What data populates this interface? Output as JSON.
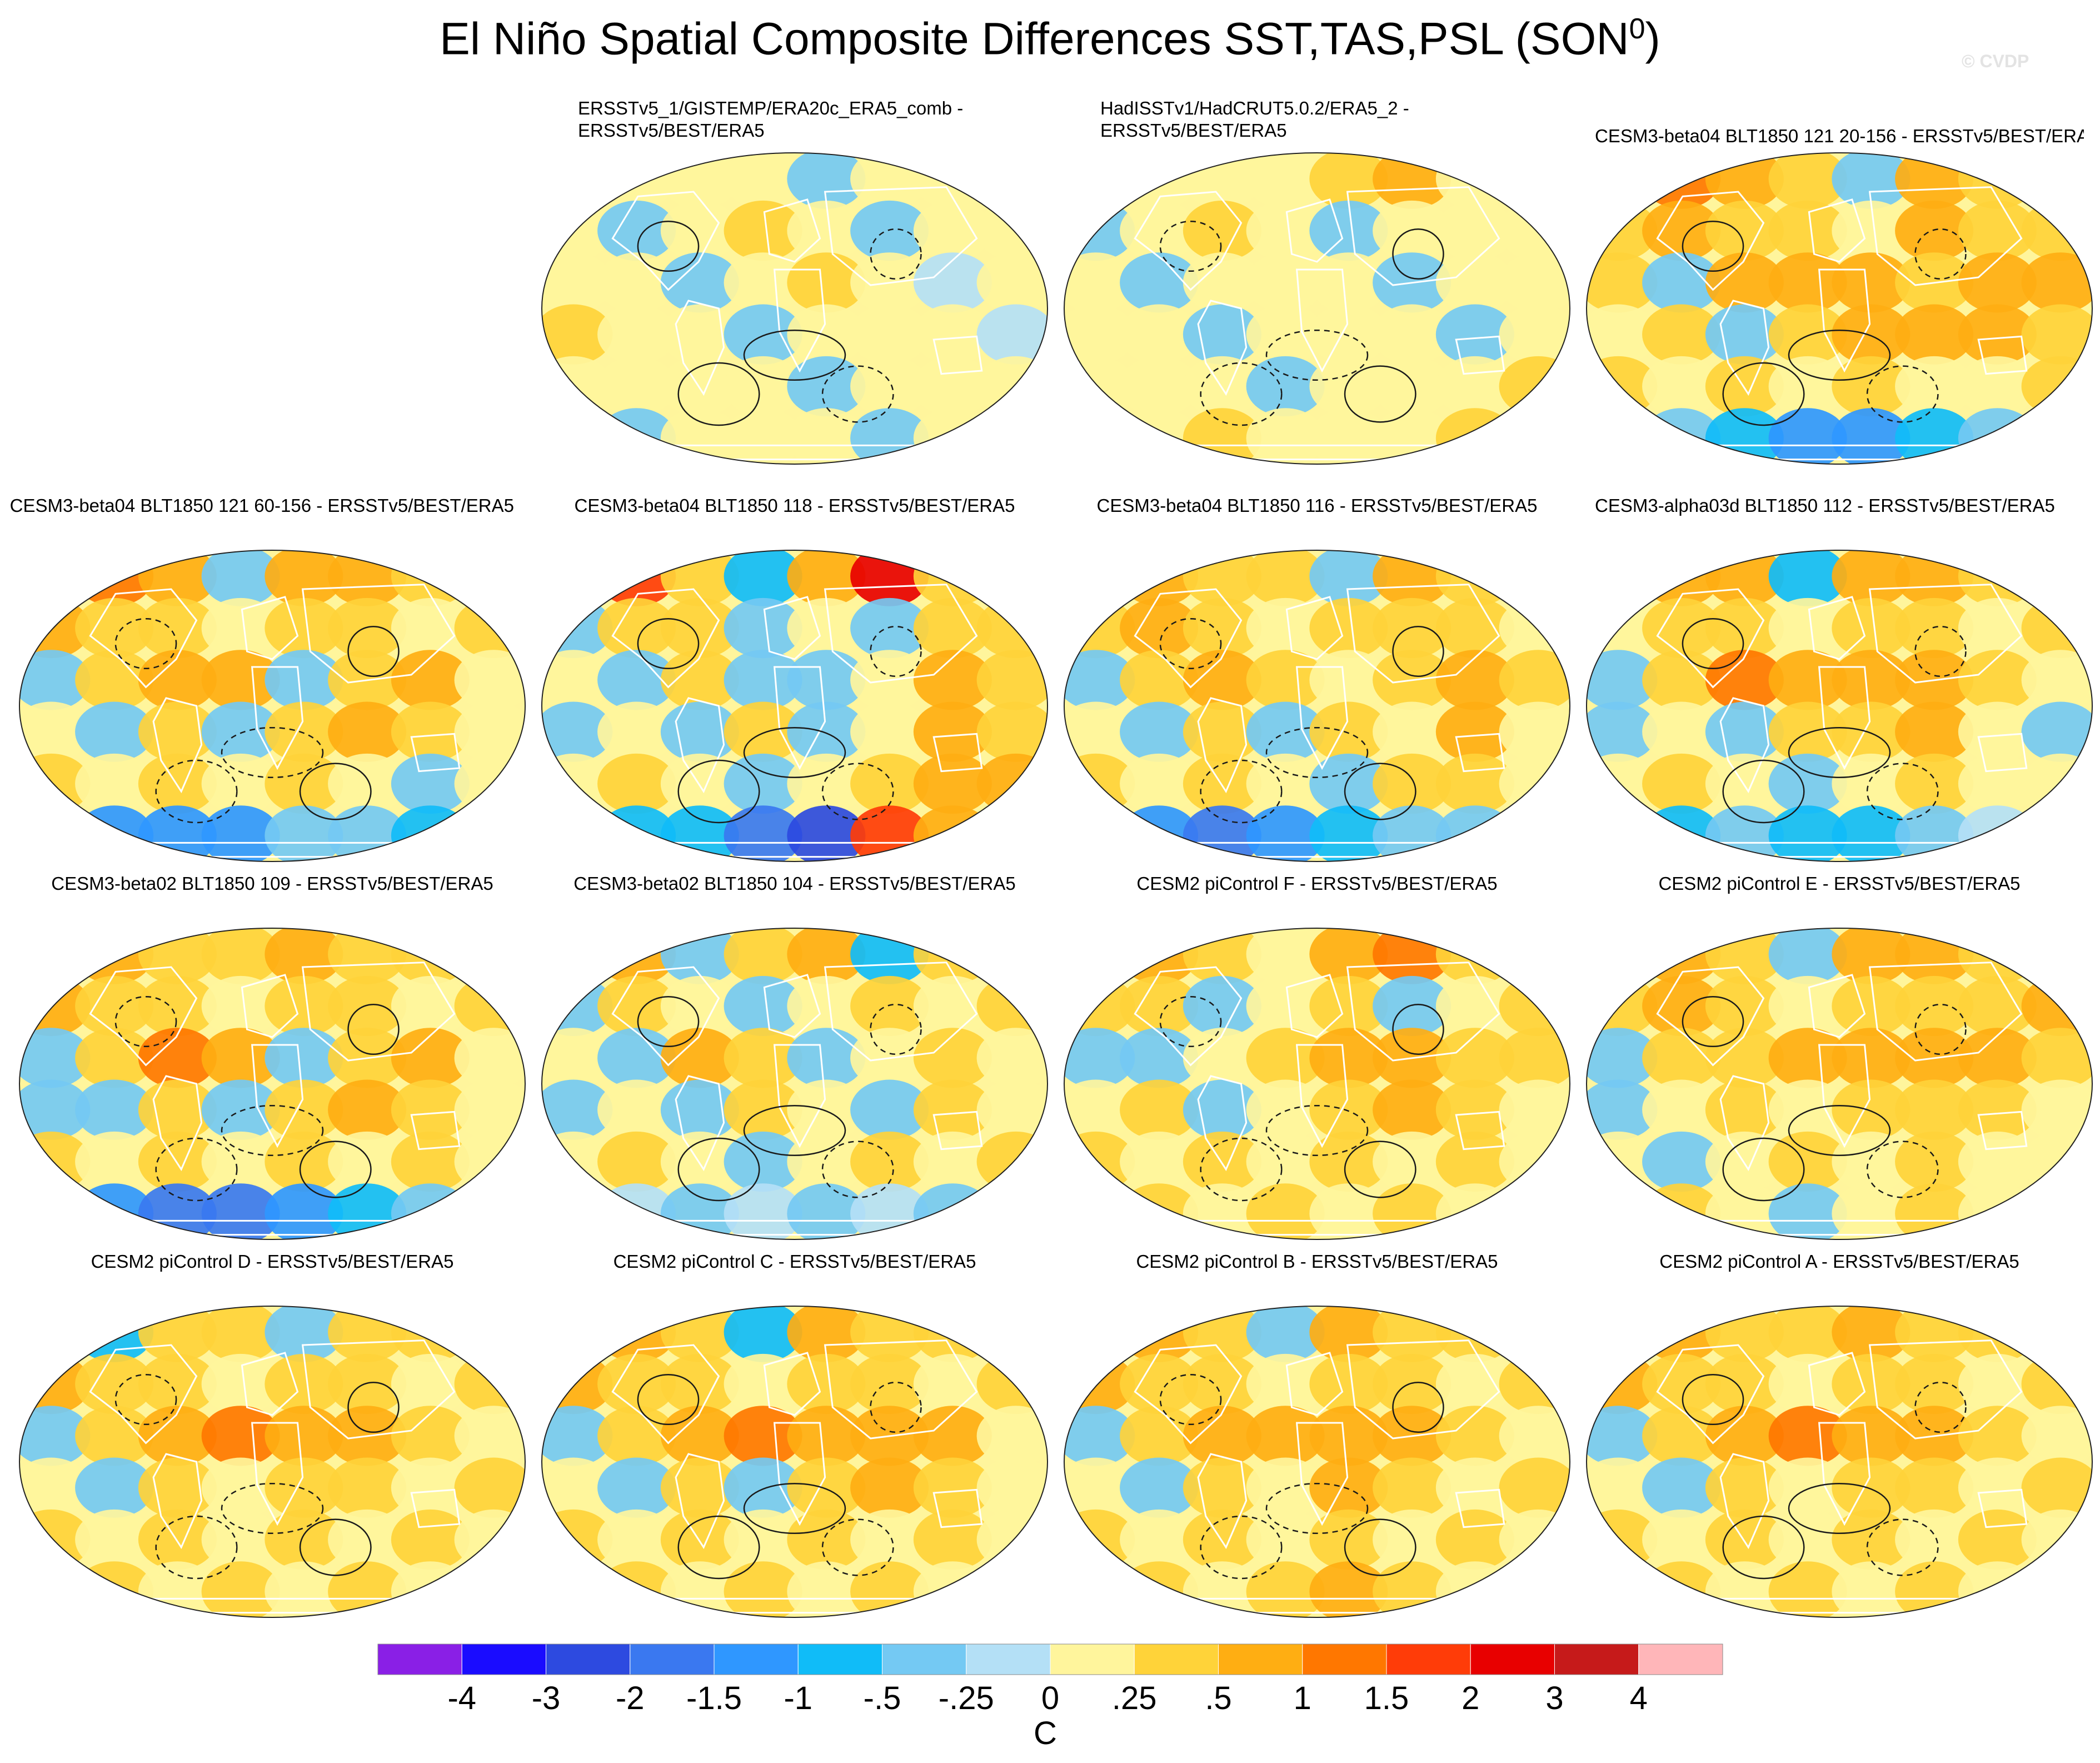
{
  "title_main": "El Niño Spatial Composite Differences SST,TAS,PSL (SON",
  "title_sup": "0",
  "title_end": ")",
  "watermark": "© CVDP",
  "colors": {
    "land_outline": "#ffffff",
    "contour": "#1a1a1a",
    "map_edge": "#222222"
  },
  "chart_data": {
    "type": "heatmap",
    "title": "El Niño Spatial Composite Differences SST,TAS,PSL (SON0)",
    "projection": "Robinson (global)",
    "colorbar": {
      "units": "C",
      "levels": [
        "-4",
        "-3",
        "-2",
        "-1.5",
        "-1",
        "-.5",
        "-.25",
        "0",
        ".25",
        ".5",
        "1",
        "1.5",
        "2",
        "3",
        "4"
      ],
      "colors": [
        "#8a1fe6",
        "#1a0cff",
        "#2d4ae0",
        "#3a78f0",
        "#2f97ff",
        "#10bcf8",
        "#74c9f3",
        "#b4e0f6",
        "#fff59c",
        "#ffd339",
        "#ffae12",
        "#ff7700",
        "#ff3c08",
        "#e80000",
        "#c61a1a",
        "#ffb6b9"
      ]
    },
    "panels": [
      {
        "title": "ERSSTv5_1/GISTEMP/ERA20c_ERA5_comb - ERSSTv5/BEST/ERA5",
        "row": 1,
        "col": 2,
        "anomalies": [
          [
            -1,
            0,
            0.2,
            0,
            -0.3,
            0.2,
            0,
            -0.4
          ],
          [
            0.2,
            -0.3,
            0,
            0.3,
            0,
            -0.3,
            0.2,
            0
          ],
          [
            0,
            0.2,
            -0.3,
            0,
            0.3,
            0,
            -0.2,
            0.2
          ],
          [
            0.3,
            0,
            0.2,
            -0.3,
            0,
            0.2,
            0,
            -0.2
          ],
          [
            0,
            0.2,
            0,
            0.2,
            -0.3,
            0,
            0.2,
            0
          ],
          [
            0,
            -0.3,
            0.2,
            0,
            0,
            -0.3,
            0,
            0.6
          ]
        ]
      },
      {
        "title": "HadISSTv1/HadCRUT5.0.2/ERA5_2 - ERSSTv5/BEST/ERA5",
        "row": 1,
        "col": 3,
        "anomalies": [
          [
            0.3,
            0,
            0.2,
            0,
            0.3,
            0.6,
            0,
            0.2
          ],
          [
            -0.3,
            0,
            0.3,
            0,
            -0.3,
            0,
            0.2,
            0
          ],
          [
            0,
            -0.3,
            0,
            0.2,
            0,
            -0.3,
            0,
            0.2
          ],
          [
            0.2,
            0,
            -0.3,
            0,
            0.2,
            0,
            -0.3,
            0
          ],
          [
            0,
            0.2,
            0,
            -0.3,
            0,
            0.2,
            0,
            0.3
          ],
          [
            0.2,
            0,
            0.3,
            0,
            0.2,
            0,
            0.3,
            0
          ]
        ]
      },
      {
        "title": "CESM3-beta04 BLT1850 121 20-156 - ERSSTv5/BEST/ERA5",
        "row": 1,
        "col": 4,
        "anomalies": [
          [
            0.8,
            1.2,
            0.6,
            0.3,
            -0.5,
            0.6,
            0.4,
            0.8
          ],
          [
            0.3,
            0.6,
            0.4,
            0.3,
            0.2,
            0.5,
            0.3,
            0.3
          ],
          [
            0.4,
            -0.3,
            0.6,
            0.7,
            0.6,
            0.4,
            0.8,
            0.6
          ],
          [
            0.2,
            0.3,
            -0.3,
            0.4,
            0.8,
            0.6,
            0.5,
            0.3
          ],
          [
            0.3,
            0.2,
            0.3,
            0.2,
            0.3,
            0.2,
            0.2,
            0.3
          ],
          [
            -0.3,
            -0.4,
            -0.6,
            -1.2,
            -1.5,
            -0.8,
            -0.3,
            -0.2
          ]
        ]
      },
      {
        "title": "CESM3-beta04 BLT1850 121 60-156 - ERSSTv5/BEST/ERA5",
        "row": 2,
        "col": 1,
        "anomalies": [
          [
            0.3,
            1.2,
            0.6,
            -0.3,
            0.5,
            0.6,
            0.3,
            -0.3
          ],
          [
            0.6,
            0.4,
            0.3,
            0.2,
            0.3,
            0.4,
            0.2,
            0.3
          ],
          [
            -0.3,
            0.3,
            0.8,
            0.6,
            -0.3,
            0.3,
            0.9,
            0.2
          ],
          [
            0.2,
            -0.3,
            0.3,
            -0.3,
            0.3,
            0.6,
            0.3,
            0.2
          ],
          [
            0.3,
            0.2,
            0.3,
            0.2,
            0.3,
            0.2,
            -0.3,
            0.2
          ],
          [
            -0.6,
            -1.2,
            -1.5,
            -1.2,
            -0.5,
            -0.3,
            -0.6,
            -0.3
          ]
        ]
      },
      {
        "title": "CESM3-beta04 BLT1850 118 - ERSSTv5/BEST/ERA5",
        "row": 2,
        "col": 2,
        "anomalies": [
          [
            0.5,
            1.5,
            0.3,
            -0.6,
            0.5,
            2,
            0.3,
            -0.5
          ],
          [
            -0.3,
            0.4,
            0.3,
            -0.3,
            0.2,
            -0.3,
            0.3,
            0.4
          ],
          [
            0.2,
            -0.3,
            0.3,
            -0.5,
            -0.3,
            0.2,
            0.6,
            0.3
          ],
          [
            -0.3,
            0.2,
            -0.3,
            0.3,
            -0.3,
            0.2,
            0.8,
            0.3
          ],
          [
            0.2,
            0.3,
            0.2,
            -0.3,
            0.2,
            0.3,
            0.6,
            0.5
          ],
          [
            -0.3,
            -0.6,
            -1,
            -2,
            -2.5,
            1.5,
            0.6,
            0.3
          ]
        ]
      },
      {
        "title": "CESM3-beta04 BLT1850 116 - ERSSTv5/BEST/ERA5",
        "row": 2,
        "col": 3,
        "anomalies": [
          [
            -0.6,
            0.6,
            0.3,
            0.4,
            -0.3,
            0.6,
            0.3,
            0.5
          ],
          [
            0.4,
            0.6,
            0.3,
            0.2,
            0.3,
            0.4,
            0.3,
            0.2
          ],
          [
            -0.3,
            0.3,
            0.6,
            0.3,
            0.2,
            0.3,
            0.8,
            0.3
          ],
          [
            0.2,
            -0.3,
            0.3,
            -0.3,
            0.3,
            0.2,
            0.9,
            0.2
          ],
          [
            0.3,
            0.2,
            0.3,
            0.2,
            -0.3,
            0.3,
            0.4,
            0.2
          ],
          [
            -0.6,
            -1.2,
            -2,
            -1.5,
            -0.8,
            -0.3,
            -0.3,
            -0.2
          ]
        ]
      },
      {
        "title": "CESM3-alpha03d BLT1850 112 - ERSSTv5/BEST/ERA5",
        "row": 2,
        "col": 4,
        "anomalies": [
          [
            0.3,
            0.6,
            0.8,
            -0.6,
            0.5,
            0.6,
            0.3,
            0.4
          ],
          [
            0.2,
            0.4,
            0.3,
            0.2,
            0.3,
            0.4,
            0.2,
            0.3
          ],
          [
            -0.3,
            0.3,
            1.2,
            0.8,
            0.6,
            0.5,
            0.3,
            0.2
          ],
          [
            -0.3,
            0.2,
            -0.3,
            0.3,
            0.4,
            0.6,
            0.2,
            -0.3
          ],
          [
            0.2,
            0.3,
            0.2,
            -0.3,
            0.2,
            0.3,
            0.2,
            0.2
          ],
          [
            -0.3,
            -0.6,
            -0.5,
            -0.8,
            -0.6,
            -0.3,
            -0.2,
            -0.3
          ]
        ]
      },
      {
        "title": "CESM3-beta02 BLT1850 109 - ERSSTv5/BEST/ERA5",
        "row": 3,
        "col": 1,
        "anomalies": [
          [
            0.3,
            0.6,
            0.4,
            0.3,
            0.5,
            0.4,
            0.3,
            0.6
          ],
          [
            0.6,
            0.3,
            0.4,
            0.2,
            0.3,
            0.4,
            0.2,
            0.3
          ],
          [
            -0.3,
            0.3,
            1,
            0.6,
            -0.3,
            0.3,
            0.8,
            0.2
          ],
          [
            -0.3,
            -0.5,
            0.3,
            -0.3,
            0.3,
            0.6,
            0.3,
            0.2
          ],
          [
            0.3,
            0.2,
            0.3,
            0.2,
            0.3,
            0.2,
            0.3,
            0.2
          ],
          [
            -0.6,
            -1.5,
            -2,
            -2,
            -1.2,
            -0.6,
            -0.3,
            -0.2
          ]
        ]
      },
      {
        "title": "CESM3-beta02 BLT1850 104 - ERSSTv5/BEST/ERA5",
        "row": 3,
        "col": 2,
        "anomalies": [
          [
            0.3,
            0.6,
            -0.3,
            0.3,
            0.8,
            -0.6,
            0.3,
            0.4
          ],
          [
            -0.3,
            0.3,
            0.2,
            -0.3,
            0.2,
            0.3,
            0.2,
            0.3
          ],
          [
            0.2,
            -0.3,
            0.6,
            0.3,
            -0.3,
            0.2,
            0.3,
            0.2
          ],
          [
            -0.3,
            0.2,
            -0.3,
            0.3,
            0.2,
            -0.3,
            0.3,
            0.2
          ],
          [
            0.2,
            0.3,
            0.2,
            -0.3,
            0.2,
            0.3,
            0.2,
            0.3
          ],
          [
            -0.3,
            -0.2,
            -0.3,
            -0.2,
            -0.3,
            -0.2,
            -0.3,
            -0.2
          ]
        ]
      },
      {
        "title": "CESM2 piControl F - ERSSTv5/BEST/ERA5",
        "row": 3,
        "col": 3,
        "anomalies": [
          [
            0.3,
            0.6,
            0.3,
            0.2,
            0.6,
            1.2,
            0.3,
            0.5
          ],
          [
            0.4,
            0.3,
            -0.3,
            0.2,
            0.3,
            -0.3,
            0.2,
            0.4
          ],
          [
            -0.3,
            -0.3,
            0.2,
            0.3,
            0.6,
            0.5,
            0.4,
            0.3
          ],
          [
            0.2,
            0.3,
            -0.3,
            0.2,
            0.4,
            0.6,
            0.3,
            0.2
          ],
          [
            0.3,
            0.2,
            0.3,
            0.2,
            0.3,
            0.2,
            0.3,
            0.2
          ],
          [
            0.2,
            0.3,
            0.2,
            0.3,
            0.2,
            0.3,
            0.2,
            0.3
          ]
        ]
      },
      {
        "title": "CESM2 piControl E - ERSSTv5/BEST/ERA5",
        "row": 3,
        "col": 4,
        "anomalies": [
          [
            -0.3,
            0.6,
            0.3,
            -0.3,
            0.5,
            0.6,
            0.3,
            0.4
          ],
          [
            0.3,
            0.6,
            0.3,
            0.2,
            0.3,
            0.4,
            0.3,
            0.6
          ],
          [
            -0.3,
            0.3,
            0.4,
            0.6,
            0.6,
            0.8,
            0.5,
            0.3
          ],
          [
            -0.3,
            0.2,
            0.3,
            0.2,
            0.3,
            0.4,
            0.3,
            0.2
          ],
          [
            0.2,
            -0.3,
            0.2,
            0.3,
            0.2,
            0.3,
            0.2,
            0.2
          ],
          [
            0.2,
            0.3,
            0.2,
            -0.3,
            0.2,
            0.3,
            0.2,
            0.2
          ]
        ]
      },
      {
        "title": "CESM2 piControl D - ERSSTv5/BEST/ERA5",
        "row": 4,
        "col": 1,
        "anomalies": [
          [
            0.3,
            -0.6,
            0.4,
            0.3,
            -0.3,
            0.4,
            0.3,
            0.6
          ],
          [
            0.6,
            0.3,
            0.4,
            0.2,
            0.3,
            0.4,
            0.2,
            0.3
          ],
          [
            -0.3,
            0.3,
            0.5,
            1,
            0.8,
            0.6,
            0.4,
            0.2
          ],
          [
            0.2,
            -0.3,
            0.3,
            0.2,
            0.3,
            0.4,
            0.2,
            0.3
          ],
          [
            0.3,
            0.2,
            0.3,
            0.2,
            0.3,
            0.2,
            0.3,
            0.2
          ],
          [
            0.2,
            0.3,
            0.2,
            0.3,
            0.2,
            0.3,
            0.2,
            0.2
          ]
        ]
      },
      {
        "title": "CESM2 piControl C - ERSSTv5/BEST/ERA5",
        "row": 4,
        "col": 2,
        "anomalies": [
          [
            0.3,
            0.6,
            0.4,
            -0.6,
            0.5,
            0.4,
            0.3,
            0.4
          ],
          [
            0.8,
            0.3,
            0.4,
            0.2,
            0.3,
            0.4,
            0.2,
            0.3
          ],
          [
            -0.3,
            0.3,
            0.6,
            1,
            0.8,
            0.6,
            0.5,
            0.2
          ],
          [
            0.2,
            -0.3,
            0.3,
            -0.3,
            0.3,
            0.6,
            0.3,
            0.2
          ],
          [
            0.3,
            0.2,
            0.3,
            0.2,
            0.3,
            0.2,
            0.3,
            0.2
          ],
          [
            0.2,
            0.3,
            0.2,
            0.3,
            0.2,
            0.3,
            0.2,
            0.2
          ]
        ]
      },
      {
        "title": "CESM2 piControl B - ERSSTv5/BEST/ERA5",
        "row": 4,
        "col": 3,
        "anomalies": [
          [
            0.3,
            0.6,
            0.4,
            -0.3,
            0.5,
            0.4,
            0.3,
            0.4
          ],
          [
            0.6,
            0.3,
            0.4,
            0.2,
            0.3,
            0.4,
            0.2,
            0.3
          ],
          [
            -0.3,
            0.3,
            0.5,
            0.8,
            0.8,
            0.6,
            0.4,
            0.2
          ],
          [
            0.2,
            -0.3,
            0.3,
            0.2,
            0.6,
            0.4,
            0.2,
            0.3
          ],
          [
            0.3,
            0.2,
            0.3,
            0.2,
            0.3,
            0.2,
            0.3,
            0.2
          ],
          [
            0.2,
            0.3,
            0.2,
            0.3,
            0.6,
            0.3,
            0.2,
            0.2
          ]
        ]
      },
      {
        "title": "CESM2 piControl A - ERSSTv5/BEST/ERA5",
        "row": 4,
        "col": 4,
        "anomalies": [
          [
            -0.3,
            0.6,
            0.4,
            0.3,
            0.5,
            0.4,
            0.3,
            0.4
          ],
          [
            0.6,
            0.3,
            0.4,
            0.2,
            0.3,
            0.4,
            0.2,
            0.3
          ],
          [
            -0.3,
            0.3,
            0.5,
            1,
            0.8,
            0.6,
            0.4,
            0.2
          ],
          [
            0.2,
            -0.3,
            0.3,
            0.2,
            0.3,
            0.4,
            0.2,
            0.3
          ],
          [
            0.3,
            0.2,
            0.3,
            0.2,
            0.3,
            0.2,
            0.3,
            0.2
          ],
          [
            0.2,
            0.3,
            0.2,
            0.3,
            0.2,
            0.3,
            0.2,
            0.2
          ]
        ]
      }
    ]
  }
}
